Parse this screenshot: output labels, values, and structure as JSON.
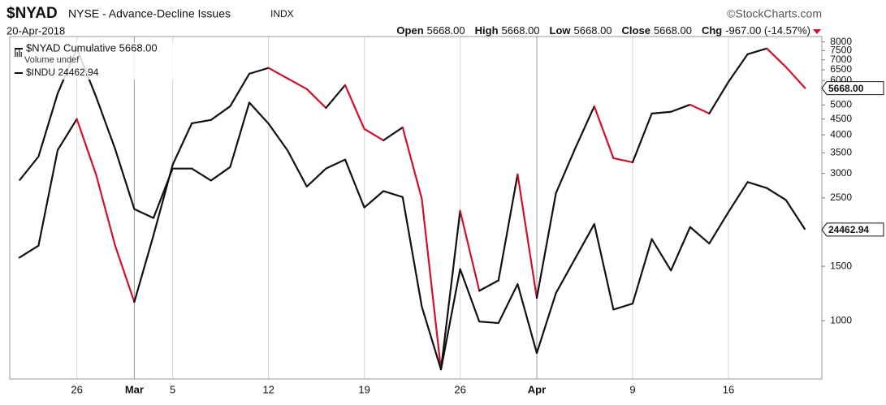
{
  "chart_data": {
    "type": "line",
    "title": "$NYAD",
    "subtitle": "NYSE - Advance-Decline Issues",
    "exchange": "INDX",
    "source": "©StockCharts.com",
    "date": "20-Apr-2018",
    "quote": [
      {
        "label": "Open",
        "value": "5668.00"
      },
      {
        "label": "High",
        "value": "5668.00"
      },
      {
        "label": "Low",
        "value": "5668.00"
      },
      {
        "label": "Close",
        "value": "5668.00"
      },
      {
        "label": "Chg",
        "value": "-967.00 (-14.57%)"
      }
    ],
    "legend_extra": "Volume undef",
    "categories": [
      null,
      null,
      null,
      "26",
      null,
      null,
      "Mar",
      null,
      "5",
      null,
      null,
      null,
      null,
      "12",
      null,
      null,
      null,
      null,
      "19",
      null,
      null,
      null,
      null,
      "26",
      null,
      null,
      null,
      "Apr",
      null,
      null,
      null,
      null,
      "9",
      null,
      null,
      null,
      null,
      "16",
      null,
      null,
      null,
      null
    ],
    "ylim": [
      647,
      8330
    ],
    "yticks": [
      1000,
      1500,
      2500,
      3000,
      3500,
      4000,
      4500,
      5000,
      6000,
      6500,
      7000,
      7500,
      8000
    ],
    "log_scale": true,
    "y2lim": [
      23467,
      25750
    ],
    "grid": "x",
    "series": [
      {
        "name": "$NYAD Cumulative 5668.00",
        "color": "#111111",
        "down_color": "#d0112b",
        "last_label": "5668.00",
        "values": [
          1600,
          1750,
          3570,
          4500,
          2980,
          1750,
          1150,
          1890,
          3200,
          4360,
          4470,
          4950,
          6310,
          6590,
          6090,
          5630,
          4890,
          5800,
          4180,
          3840,
          4230,
          2480,
          695,
          2270,
          1250,
          1350,
          2980,
          1185,
          2590,
          3610,
          4950,
          3360,
          3260,
          4690,
          4750,
          5010,
          4690,
          5940,
          7300,
          7620,
          6635,
          5668
        ]
      },
      {
        "name": "$INDU 24462.94",
        "color": "#111111",
        "axis": "y2",
        "last_label": "24462.94",
        "values": [
          24790,
          24950,
          25370,
          25670,
          25350,
          25000,
          24600,
          24540,
          24870,
          24870,
          24790,
          24880,
          25310,
          25170,
          24990,
          24750,
          24870,
          24930,
          24610,
          24720,
          24680,
          23950,
          23530,
          24200,
          23850,
          23840,
          24100,
          23640,
          24040,
          24270,
          24500,
          23930,
          23970,
          24400,
          24190,
          24480,
          24370,
          24580,
          24780,
          24740,
          24660,
          24462.94
        ]
      }
    ]
  }
}
